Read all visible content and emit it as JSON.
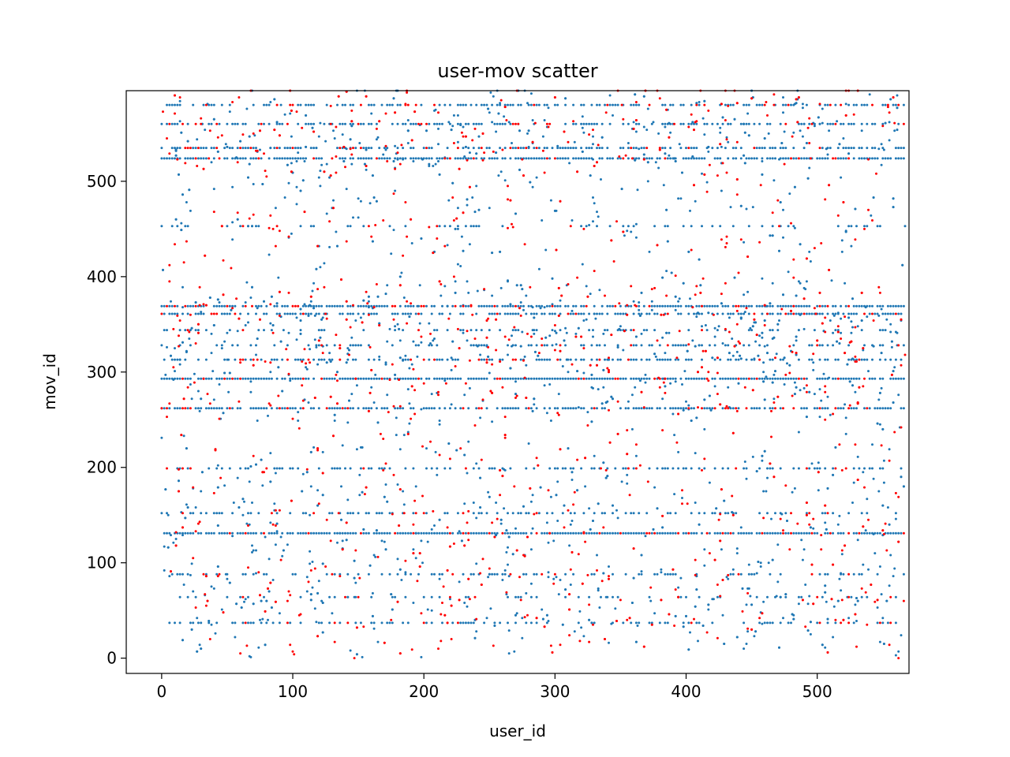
{
  "chart_data": {
    "type": "scatter",
    "title": "user-mov scatter",
    "xlabel": "user_id",
    "ylabel": "mov_id",
    "xlim": [
      -27,
      570
    ],
    "ylim": [
      -16,
      595
    ],
    "xticks": [
      0,
      100,
      200,
      300,
      400,
      500
    ],
    "yticks": [
      0,
      100,
      200,
      300,
      400,
      500
    ],
    "grid": false,
    "legend": "none",
    "colors": {
      "primary": "#1f77b4",
      "highlight": "#ff0000",
      "axis": "#000000"
    },
    "x_range": [
      0,
      567
    ],
    "y_range": [
      0,
      595
    ],
    "dense_rows": [
      {
        "mov_id": 131,
        "density": 0.9
      },
      {
        "mov_id": 293,
        "density": 0.9
      },
      {
        "mov_id": 369,
        "density": 0.8
      },
      {
        "mov_id": 361,
        "density": 0.6
      },
      {
        "mov_id": 262,
        "density": 0.75
      },
      {
        "mov_id": 524,
        "density": 0.75
      },
      {
        "mov_id": 535,
        "density": 0.55
      },
      {
        "mov_id": 560,
        "density": 0.5
      },
      {
        "mov_id": 580,
        "density": 0.55
      },
      {
        "mov_id": 199,
        "density": 0.45
      },
      {
        "mov_id": 313,
        "density": 0.45
      },
      {
        "mov_id": 152,
        "density": 0.35
      },
      {
        "mov_id": 37,
        "density": 0.35
      },
      {
        "mov_id": 88,
        "density": 0.3
      },
      {
        "mov_id": 328,
        "density": 0.3
      },
      {
        "mov_id": 344,
        "density": 0.25
      },
      {
        "mov_id": 453,
        "density": 0.2
      },
      {
        "mov_id": 64,
        "density": 0.2
      }
    ]
  }
}
